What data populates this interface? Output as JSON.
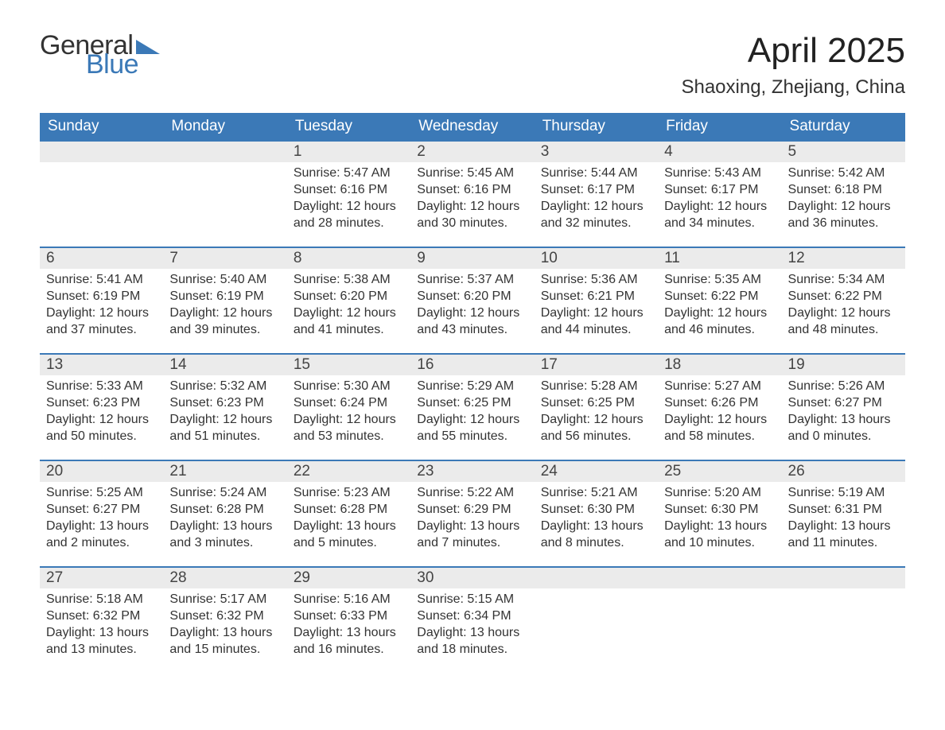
{
  "logo": {
    "word1": "General",
    "word2": "Blue",
    "accent_color": "#3b79b7"
  },
  "title": "April 2025",
  "location": "Shaoxing, Zhejiang, China",
  "colors": {
    "header_bg": "#3b79b7",
    "header_text": "#ffffff",
    "daynum_bg": "#ebebeb",
    "row_border": "#3b79b7",
    "body_text": "#333333",
    "page_bg": "#ffffff"
  },
  "fonts": {
    "title_size_pt": 33,
    "location_size_pt": 18,
    "header_size_pt": 14,
    "body_size_pt": 12
  },
  "weekdays": [
    "Sunday",
    "Monday",
    "Tuesday",
    "Wednesday",
    "Thursday",
    "Friday",
    "Saturday"
  ],
  "first_weekday_index": 2,
  "days_in_month": 30,
  "days": {
    "1": {
      "sunrise": "5:47 AM",
      "sunset": "6:16 PM",
      "daylight": "12 hours and 28 minutes."
    },
    "2": {
      "sunrise": "5:45 AM",
      "sunset": "6:16 PM",
      "daylight": "12 hours and 30 minutes."
    },
    "3": {
      "sunrise": "5:44 AM",
      "sunset": "6:17 PM",
      "daylight": "12 hours and 32 minutes."
    },
    "4": {
      "sunrise": "5:43 AM",
      "sunset": "6:17 PM",
      "daylight": "12 hours and 34 minutes."
    },
    "5": {
      "sunrise": "5:42 AM",
      "sunset": "6:18 PM",
      "daylight": "12 hours and 36 minutes."
    },
    "6": {
      "sunrise": "5:41 AM",
      "sunset": "6:19 PM",
      "daylight": "12 hours and 37 minutes."
    },
    "7": {
      "sunrise": "5:40 AM",
      "sunset": "6:19 PM",
      "daylight": "12 hours and 39 minutes."
    },
    "8": {
      "sunrise": "5:38 AM",
      "sunset": "6:20 PM",
      "daylight": "12 hours and 41 minutes."
    },
    "9": {
      "sunrise": "5:37 AM",
      "sunset": "6:20 PM",
      "daylight": "12 hours and 43 minutes."
    },
    "10": {
      "sunrise": "5:36 AM",
      "sunset": "6:21 PM",
      "daylight": "12 hours and 44 minutes."
    },
    "11": {
      "sunrise": "5:35 AM",
      "sunset": "6:22 PM",
      "daylight": "12 hours and 46 minutes."
    },
    "12": {
      "sunrise": "5:34 AM",
      "sunset": "6:22 PM",
      "daylight": "12 hours and 48 minutes."
    },
    "13": {
      "sunrise": "5:33 AM",
      "sunset": "6:23 PM",
      "daylight": "12 hours and 50 minutes."
    },
    "14": {
      "sunrise": "5:32 AM",
      "sunset": "6:23 PM",
      "daylight": "12 hours and 51 minutes."
    },
    "15": {
      "sunrise": "5:30 AM",
      "sunset": "6:24 PM",
      "daylight": "12 hours and 53 minutes."
    },
    "16": {
      "sunrise": "5:29 AM",
      "sunset": "6:25 PM",
      "daylight": "12 hours and 55 minutes."
    },
    "17": {
      "sunrise": "5:28 AM",
      "sunset": "6:25 PM",
      "daylight": "12 hours and 56 minutes."
    },
    "18": {
      "sunrise": "5:27 AM",
      "sunset": "6:26 PM",
      "daylight": "12 hours and 58 minutes."
    },
    "19": {
      "sunrise": "5:26 AM",
      "sunset": "6:27 PM",
      "daylight": "13 hours and 0 minutes."
    },
    "20": {
      "sunrise": "5:25 AM",
      "sunset": "6:27 PM",
      "daylight": "13 hours and 2 minutes."
    },
    "21": {
      "sunrise": "5:24 AM",
      "sunset": "6:28 PM",
      "daylight": "13 hours and 3 minutes."
    },
    "22": {
      "sunrise": "5:23 AM",
      "sunset": "6:28 PM",
      "daylight": "13 hours and 5 minutes."
    },
    "23": {
      "sunrise": "5:22 AM",
      "sunset": "6:29 PM",
      "daylight": "13 hours and 7 minutes."
    },
    "24": {
      "sunrise": "5:21 AM",
      "sunset": "6:30 PM",
      "daylight": "13 hours and 8 minutes."
    },
    "25": {
      "sunrise": "5:20 AM",
      "sunset": "6:30 PM",
      "daylight": "13 hours and 10 minutes."
    },
    "26": {
      "sunrise": "5:19 AM",
      "sunset": "6:31 PM",
      "daylight": "13 hours and 11 minutes."
    },
    "27": {
      "sunrise": "5:18 AM",
      "sunset": "6:32 PM",
      "daylight": "13 hours and 13 minutes."
    },
    "28": {
      "sunrise": "5:17 AM",
      "sunset": "6:32 PM",
      "daylight": "13 hours and 15 minutes."
    },
    "29": {
      "sunrise": "5:16 AM",
      "sunset": "6:33 PM",
      "daylight": "13 hours and 16 minutes."
    },
    "30": {
      "sunrise": "5:15 AM",
      "sunset": "6:34 PM",
      "daylight": "13 hours and 18 minutes."
    }
  },
  "labels": {
    "sunrise": "Sunrise:",
    "sunset": "Sunset:",
    "daylight": "Daylight:"
  }
}
